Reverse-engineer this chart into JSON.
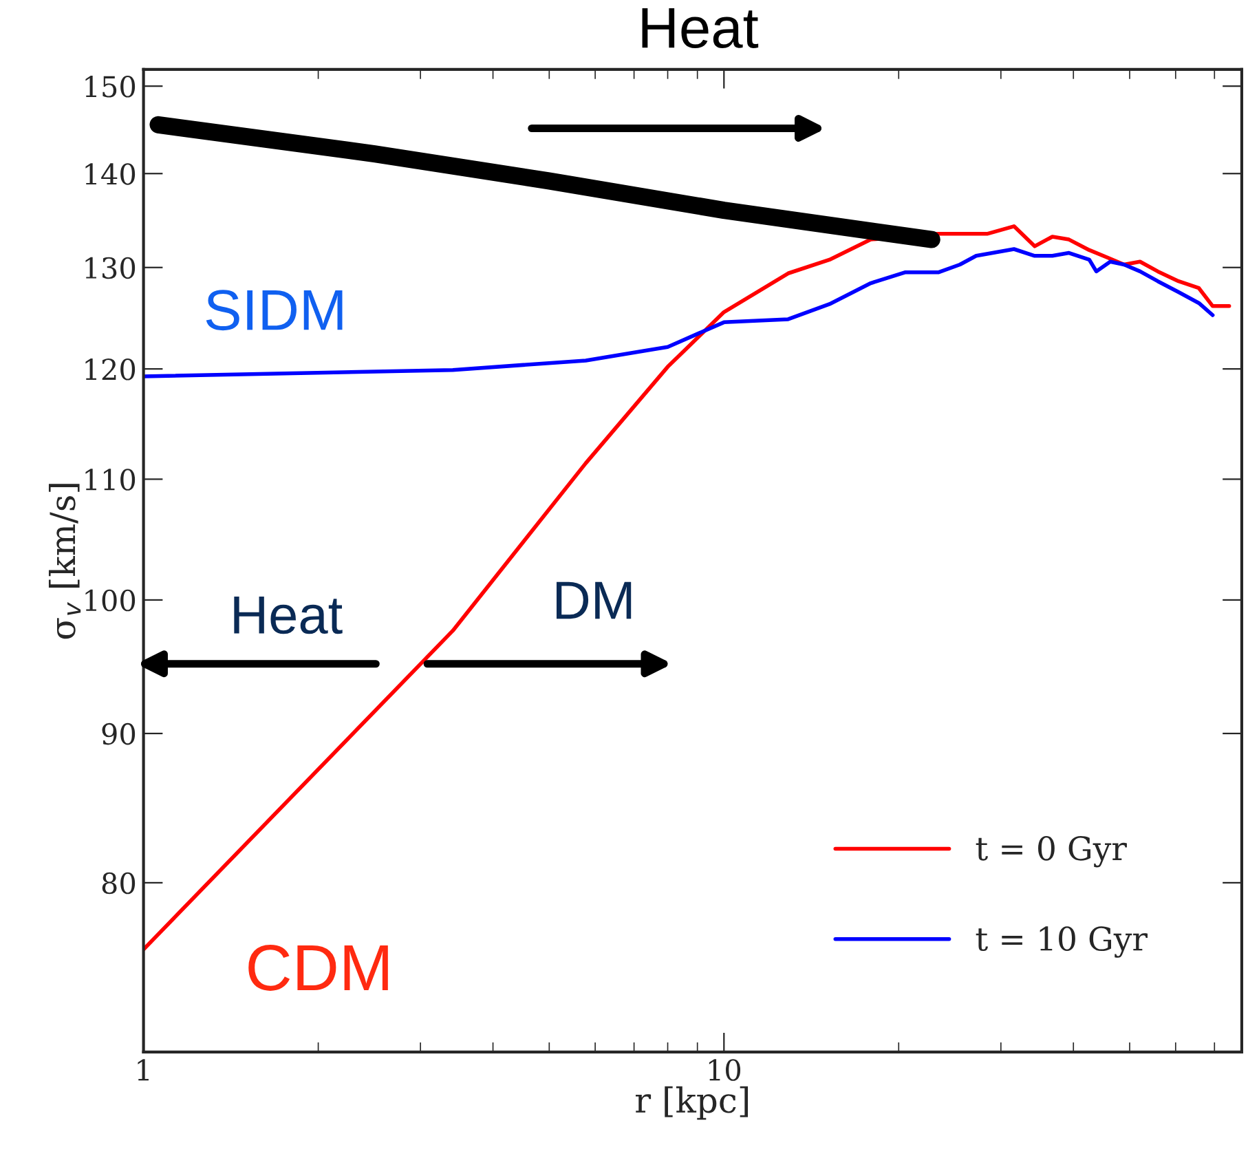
{
  "chart_data": {
    "type": "line",
    "xlabel": "r [kpc]",
    "ylabel": "σ$_{v}$ [km/s]",
    "log": "xy",
    "xlim": [
      1,
      78
    ],
    "ylim": [
      70,
      152
    ],
    "xticks": [
      1,
      10
    ],
    "yticks": [
      80,
      90,
      100,
      110,
      120,
      130,
      140,
      150
    ],
    "legend": "bottom right",
    "grid": false,
    "marker": "none",
    "line_style": "solid",
    "series": [
      {
        "name": "t = 0 Gyr",
        "color": "#ff0000",
        "x": [
          1,
          3.41,
          5.78,
          8.0,
          10,
          12.9,
          15.2,
          17.9,
          20.5,
          23.4,
          28.4,
          31.6,
          34.3,
          36.8,
          39.3,
          42.6,
          46.3,
          48.9,
          52.1,
          55.9,
          60.7,
          65.8,
          69.5,
          74.2
        ],
        "values": [
          75.9,
          97.6,
          111.4,
          120.2,
          125.5,
          129.4,
          130.8,
          132.9,
          null,
          133.5,
          133.5,
          134.3,
          132.2,
          133.2,
          132.9,
          131.8,
          130.9,
          130.3,
          130.6,
          129.6,
          128.6,
          127.9,
          126.1,
          126.1
        ]
      },
      {
        "name": "t = 10 Gyr",
        "color": "#0000ff",
        "x": [
          1,
          3.41,
          5.78,
          8.0,
          10,
          12.9,
          15.2,
          17.9,
          20.5,
          23.4,
          25.5,
          27.2,
          31.6,
          34.3,
          36.8,
          39.3,
          42.6,
          43.8,
          46.3,
          48.9,
          52.1,
          55.9,
          60.7,
          65.8,
          69.5
        ],
        "values": [
          119.3,
          119.9,
          120.8,
          122.1,
          124.5,
          124.8,
          126.3,
          128.4,
          129.5,
          129.5,
          130.3,
          131.2,
          131.9,
          131.2,
          131.2,
          131.5,
          130.8,
          129.6,
          130.6,
          130.3,
          129.6,
          128.6,
          127.5,
          126.4,
          125.2
        ]
      },
      {
        "color": "#000000",
        "x": [
          1.06,
          2.5,
          4.99,
          10,
          22.8
        ],
        "values": [
          145.5,
          142.2,
          139.2,
          136.0,
          132.9
        ]
      }
    ],
    "annotations": [
      "Heat",
      "SIDM",
      "Heat",
      "DM",
      "CDM"
    ]
  }
}
